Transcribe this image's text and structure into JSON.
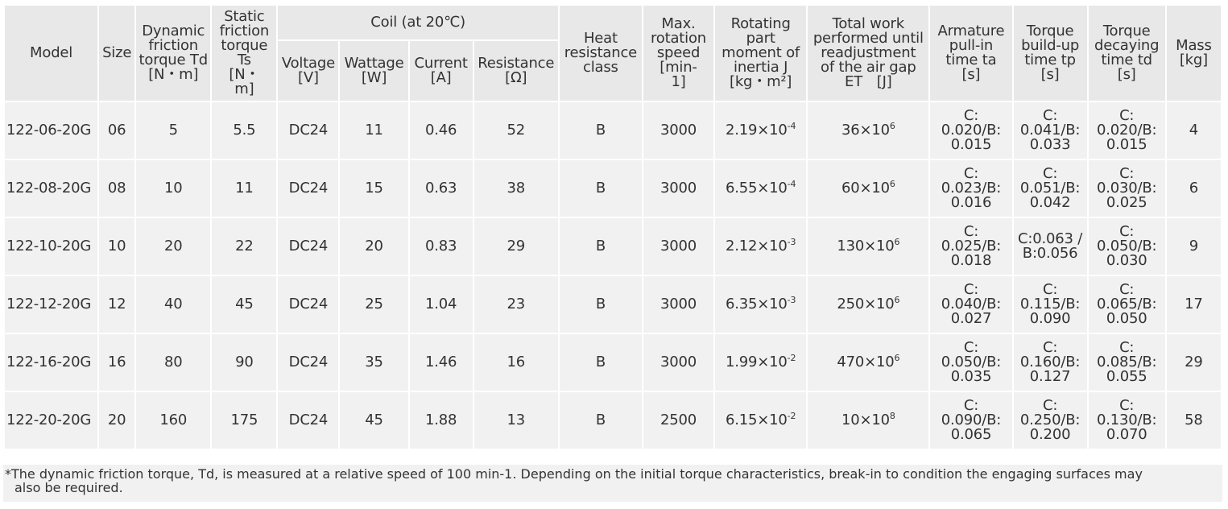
{
  "headers": {
    "model": "Model",
    "size": "Size",
    "dynamic": "Dynamic\nfriction\ntorque Td\n[N・m]",
    "static": "Static\nfriction\ntorque\nTs\n[N・\nm]",
    "coil": "Coil (at 20℃)",
    "voltage": "Voltage\n[V]",
    "wattage": "Wattage\n[W]",
    "current": "Current\n[A]",
    "resistance": "Resistance\n[Ω]",
    "heat": "Heat\nresistance\nclass",
    "speed": "Max.\nrotation\nspeed\n[min-\n1]",
    "inertia": "Rotating\npart\nmoment of\ninertia J\n[kg・m²]",
    "work": "Total work\nperformed until\nreadjustment\nof the air gap\nET　[J]",
    "ta": "Armature\npull-in\ntime ta\n[s]",
    "tp": "Torque\nbuild-up\ntime tp\n[s]",
    "td": "Torque\ndecaying\ntime td\n[s]",
    "mass": "Mass\n[kg]"
  },
  "rows": [
    {
      "model": "122-06-20G",
      "size": "06",
      "dynamic": "5",
      "static": "5.5",
      "voltage": "DC24",
      "wattage": "11",
      "current": "0.46",
      "resistance": "52",
      "heat": "B",
      "speed": "3000",
      "inertia_base": "2.19×10",
      "inertia_exp": "-4",
      "work_base": "36×10",
      "work_exp": "6",
      "ta": "C:\n0.020/B:\n0.015",
      "tp": "C:\n0.041/B:\n0.033",
      "td": "C:\n0.020/B:\n0.015",
      "mass": "4"
    },
    {
      "model": "122-08-20G",
      "size": "08",
      "dynamic": "10",
      "static": "11",
      "voltage": "DC24",
      "wattage": "15",
      "current": "0.63",
      "resistance": "38",
      "heat": "B",
      "speed": "3000",
      "inertia_base": "6.55×10",
      "inertia_exp": "-4",
      "work_base": "60×10",
      "work_exp": "6",
      "ta": "C:\n0.023/B:\n0.016",
      "tp": "C:\n0.051/B:\n0.042",
      "td": "C:\n0.030/B:\n0.025",
      "mass": "6"
    },
    {
      "model": "122-10-20G",
      "size": "10",
      "dynamic": "20",
      "static": "22",
      "voltage": "DC24",
      "wattage": "20",
      "current": "0.83",
      "resistance": "29",
      "heat": "B",
      "speed": "3000",
      "inertia_base": "2.12×10",
      "inertia_exp": "-3",
      "work_base": "130×10",
      "work_exp": "6",
      "ta": "C:\n0.025/B:\n0.018",
      "tp": "C:0.063 /\nB:0.056",
      "td": "C:\n0.050/B:\n0.030",
      "mass": "9"
    },
    {
      "model": "122-12-20G",
      "size": "12",
      "dynamic": "40",
      "static": "45",
      "voltage": "DC24",
      "wattage": "25",
      "current": "1.04",
      "resistance": "23",
      "heat": "B",
      "speed": "3000",
      "inertia_base": "6.35×10",
      "inertia_exp": "-3",
      "work_base": "250×10",
      "work_exp": "6",
      "ta": "C:\n0.040/B:\n0.027",
      "tp": "C:\n0.115/B:\n0.090",
      "td": "C:\n0.065/B:\n0.050",
      "mass": "17"
    },
    {
      "model": "122-16-20G",
      "size": "16",
      "dynamic": "80",
      "static": "90",
      "voltage": "DC24",
      "wattage": "35",
      "current": "1.46",
      "resistance": "16",
      "heat": "B",
      "speed": "3000",
      "inertia_base": "1.99×10",
      "inertia_exp": "-2",
      "work_base": "470×10",
      "work_exp": "6",
      "ta": "C:\n0.050/B:\n0.035",
      "tp": "C:\n0.160/B:\n0.127",
      "td": "C:\n0.085/B:\n0.055",
      "mass": "29"
    },
    {
      "model": "122-20-20G",
      "size": "20",
      "dynamic": "160",
      "static": "175",
      "voltage": "DC24",
      "wattage": "45",
      "current": "1.88",
      "resistance": "13",
      "heat": "B",
      "speed": "2500",
      "inertia_base": "6.15×10",
      "inertia_exp": "-2",
      "work_base": "10×10",
      "work_exp": "8",
      "ta": "C:\n0.090/B:\n0.065",
      "tp": "C:\n0.250/B:\n0.200",
      "td": "C:\n0.130/B:\n0.070",
      "mass": "58"
    }
  ],
  "footnote": {
    "line1": "*The dynamic friction torque, Td, is measured at a relative speed of 100 min-1. Depending on the initial torque characteristics, break-in to condition the engaging surfaces may",
    "line2": "also be required."
  },
  "colors": {
    "cell": "#f1f1f1",
    "header": "#e8e8e8",
    "text": "#333333",
    "grid": "#ffffff"
  }
}
